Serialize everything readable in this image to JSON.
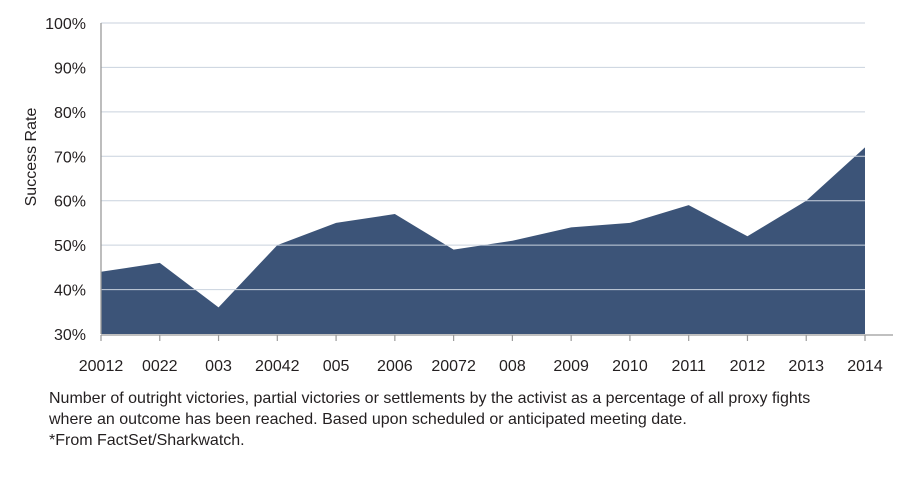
{
  "chart_data": {
    "type": "area",
    "categories": [
      "20012",
      "0022",
      "003",
      "20042",
      "005",
      "2006",
      "20072",
      "008",
      "2009",
      "2010",
      "2011",
      "2012",
      "2013",
      "2014"
    ],
    "series": [
      {
        "values": [
          44,
          46,
          36,
          50,
          55,
          57,
          49,
          51,
          54,
          55,
          59,
          52,
          60,
          72
        ]
      }
    ],
    "ylabel": "Success Rate",
    "ylim": [
      30,
      100
    ],
    "yticks": [
      "30%",
      "40%",
      "50%",
      "60%",
      "70%",
      "80%",
      "90%",
      "100%"
    ],
    "grid": true,
    "fill_color": "#3c5478",
    "grid_color": "#c9d2de",
    "axis_color": "#9a9a9a"
  },
  "notes": {
    "line1": "Number of outright victories, partial victories or settlements by the activist as a percentage of all proxy fights",
    "line2": "where an outcome has been reached. Based upon scheduled or anticipated meeting date.",
    "source": "*From FactSet/Sharkwatch."
  }
}
